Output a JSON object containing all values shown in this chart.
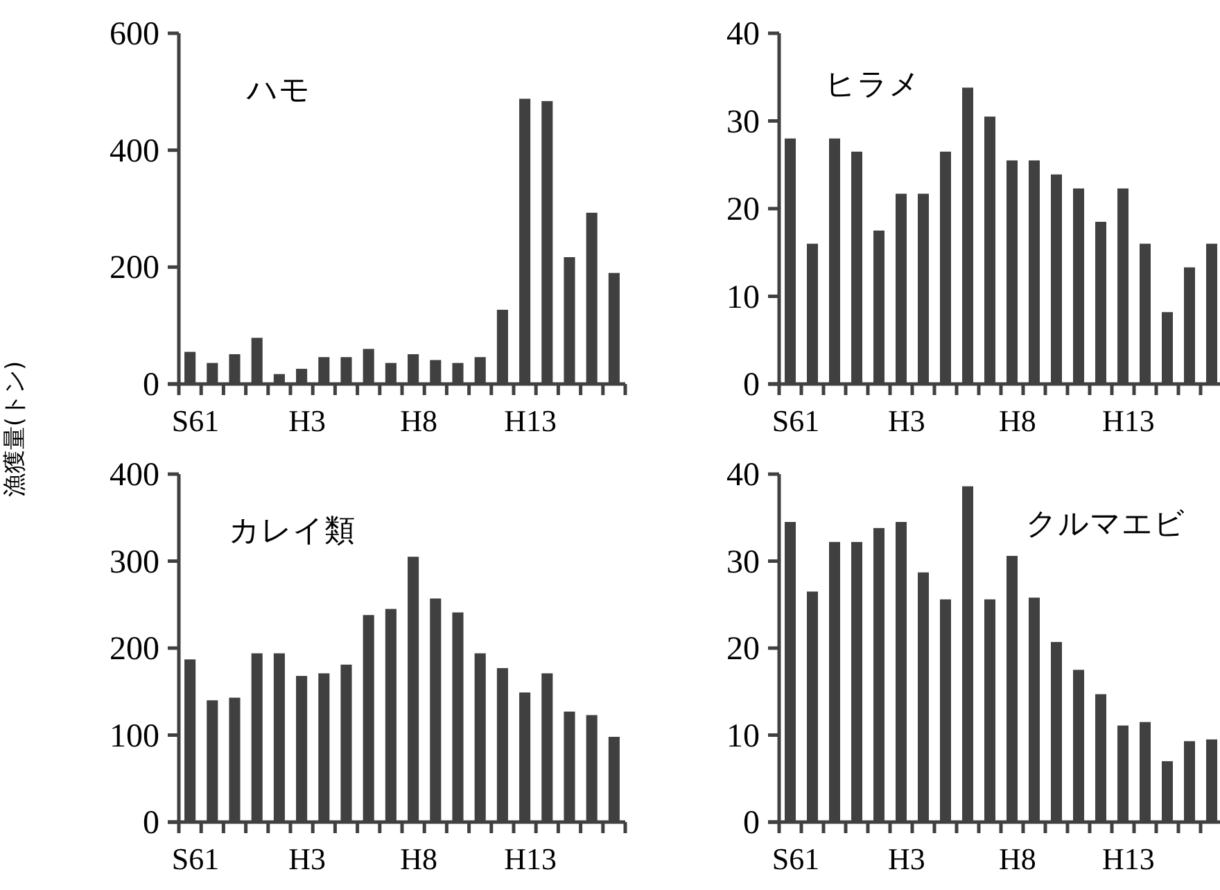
{
  "chart_data": [
    {
      "type": "bar",
      "title": "ハモ",
      "ylabel": "漁獲量(トン)",
      "categories": [
        "S61",
        null,
        null,
        null,
        null,
        "H3",
        null,
        null,
        null,
        null,
        "H8",
        null,
        null,
        null,
        null,
        "H13",
        null,
        null,
        null,
        null
      ],
      "color": "#404040",
      "values": [
        55,
        36,
        51,
        79,
        17,
        26,
        46,
        46,
        60,
        36,
        51,
        41,
        36,
        46,
        127,
        488,
        484,
        217,
        293,
        190
      ],
      "ylim": [
        0,
        600
      ],
      "yticks": [
        0,
        200,
        400,
        600
      ]
    },
    {
      "type": "bar",
      "title": "ヒラメ",
      "categories": [
        "S61",
        null,
        null,
        null,
        null,
        "H3",
        null,
        null,
        null,
        null,
        "H8",
        null,
        null,
        null,
        null,
        "H13",
        null,
        null,
        null,
        null
      ],
      "color": "#404040",
      "values": [
        28,
        16,
        28,
        26.5,
        17.5,
        21.7,
        21.7,
        26.5,
        33.8,
        30.5,
        25.5,
        25.5,
        23.9,
        22.3,
        18.5,
        22.3,
        16,
        8.2,
        13.3,
        16
      ],
      "ylim": [
        0,
        40
      ],
      "yticks": [
        0,
        10,
        20,
        30,
        40
      ]
    },
    {
      "type": "bar",
      "title": "カレイ類",
      "categories": [
        "S61",
        null,
        null,
        null,
        null,
        "H3",
        null,
        null,
        null,
        null,
        "H8",
        null,
        null,
        null,
        null,
        "H13",
        null,
        null,
        null,
        null
      ],
      "color": "#404040",
      "values": [
        187,
        140,
        143,
        194,
        194,
        168,
        171,
        181,
        238,
        245,
        305,
        257,
        241,
        194,
        177,
        149,
        171,
        127,
        123,
        98
      ],
      "ylim": [
        0,
        400
      ],
      "yticks": [
        0,
        100,
        200,
        300,
        400
      ]
    },
    {
      "type": "bar",
      "title": "クルマエビ",
      "categories": [
        "S61",
        null,
        null,
        null,
        null,
        "H3",
        null,
        null,
        null,
        null,
        "H8",
        null,
        null,
        null,
        null,
        "H13",
        null,
        null,
        null,
        null
      ],
      "color": "#404040",
      "values": [
        34.5,
        26.5,
        32.2,
        32.2,
        33.8,
        34.5,
        28.7,
        25.6,
        38.6,
        25.6,
        30.6,
        25.8,
        20.7,
        17.5,
        14.7,
        11.1,
        11.5,
        7,
        9.3,
        9.5
      ],
      "ylim": [
        0,
        40
      ],
      "yticks": [
        0,
        10,
        20,
        30,
        40
      ]
    }
  ]
}
